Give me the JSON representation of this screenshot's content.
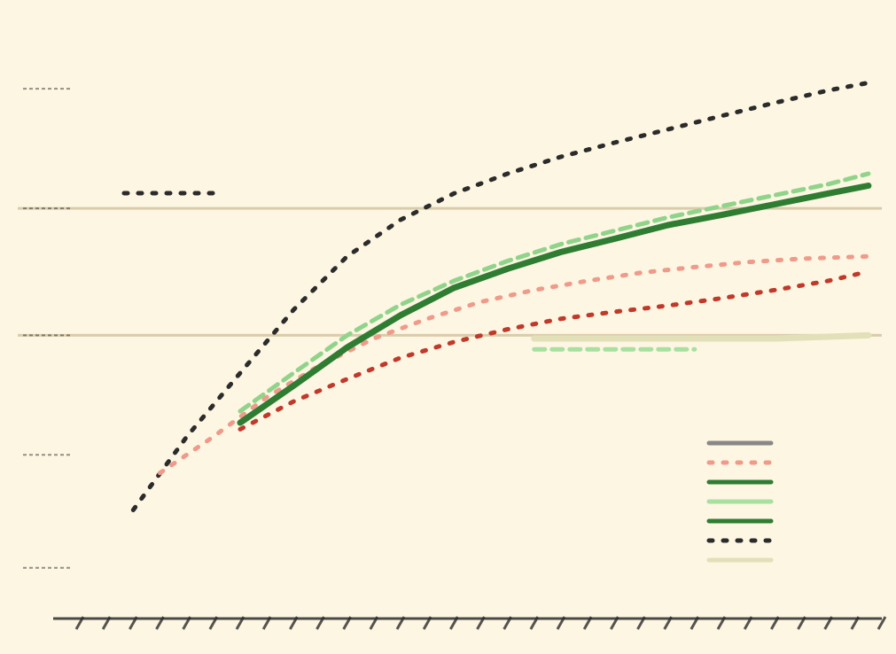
{
  "chart_data": {
    "type": "line",
    "title": "",
    "subtitle": "",
    "xlabel": "",
    "ylabel": "",
    "y_scale": "log",
    "x_domain": [
      0,
      30
    ],
    "y_domain": [
      0.5,
      5000
    ],
    "y_ticks": [
      {
        "value": 2000,
        "label": ""
      },
      {
        "value": 300,
        "label": ""
      },
      {
        "value": 40,
        "label": ""
      },
      {
        "value": 6,
        "label": ""
      },
      {
        "value": 1,
        "label": ""
      }
    ],
    "x_ticks": [],
    "grid_y_values": [
      300,
      40
    ],
    "top_legend": [
      {
        "label": "",
        "color": "#2b2b2b",
        "style": "dotted"
      }
    ],
    "series": [
      {
        "color": "#2b2b2b",
        "style": "dotted",
        "x": [
          2,
          4,
          6,
          8,
          10,
          12,
          14,
          16,
          18,
          20,
          22,
          24,
          26,
          28,
          29.5
        ],
        "y": [
          2.5,
          8,
          22,
          60,
          140,
          250,
          380,
          520,
          680,
          850,
          1050,
          1300,
          1600,
          1950,
          2200
        ]
      },
      {
        "color": "#ef9a8a",
        "style": "dotted",
        "x": [
          3,
          5,
          7,
          9,
          11,
          13,
          15,
          17,
          19,
          21,
          23,
          25,
          27,
          29.5
        ],
        "y": [
          4.5,
          8,
          15,
          25,
          38,
          52,
          68,
          82,
          95,
          108,
          118,
          128,
          135,
          140
        ]
      },
      {
        "color": "#2e7d32",
        "style": "solid",
        "x": [
          6,
          8,
          10,
          12,
          14,
          16,
          18,
          20,
          22,
          24,
          26,
          28,
          29.5
        ],
        "y": [
          10,
          18,
          33,
          55,
          85,
          115,
          150,
          185,
          230,
          270,
          320,
          380,
          430
        ]
      },
      {
        "color": "#8fd48a",
        "style": "dashed",
        "x": [
          6,
          8,
          10,
          12,
          14,
          16,
          18,
          20,
          22,
          24,
          26,
          28,
          29.5
        ],
        "y": [
          12,
          22,
          40,
          65,
          95,
          130,
          170,
          210,
          260,
          310,
          370,
          440,
          520
        ]
      },
      {
        "color": "#a8e0a0",
        "style": "dashed",
        "x": [
          17,
          19,
          21,
          23
        ],
        "y": [
          32,
          32,
          32,
          32
        ]
      },
      {
        "color": "#c0392b",
        "style": "dotted",
        "x": [
          6,
          8,
          10,
          12,
          14,
          16,
          18,
          20,
          22,
          24,
          26,
          28,
          29.5
        ],
        "y": [
          9,
          14,
          20,
          28,
          36,
          44,
          52,
          58,
          64,
          72,
          82,
          95,
          110
        ]
      },
      {
        "color": "#e2e0b8",
        "style": "solid",
        "x": [
          17,
          20,
          23,
          26,
          29.5
        ],
        "y": [
          38,
          38,
          38,
          38,
          40
        ]
      }
    ],
    "legend": {
      "position": "bottom-right",
      "entries": [
        {
          "label": "",
          "color": "#888888",
          "style": "solid"
        },
        {
          "label": "",
          "color": "#ef9a8a",
          "style": "dotted"
        },
        {
          "label": "",
          "color": "#2e7d32",
          "style": "solid"
        },
        {
          "label": "",
          "color": "#a8e0a0",
          "style": "solid"
        },
        {
          "label": "",
          "color": "#2e7d32",
          "style": "solid"
        },
        {
          "label": "",
          "color": "#2b2b2b",
          "style": "dotted"
        },
        {
          "label": "",
          "color": "#e2e0b8",
          "style": "solid"
        }
      ]
    },
    "colors": {
      "background": "#fdf6e2",
      "gridline": "#d9ccaa",
      "text": "#2b2b2b"
    }
  }
}
